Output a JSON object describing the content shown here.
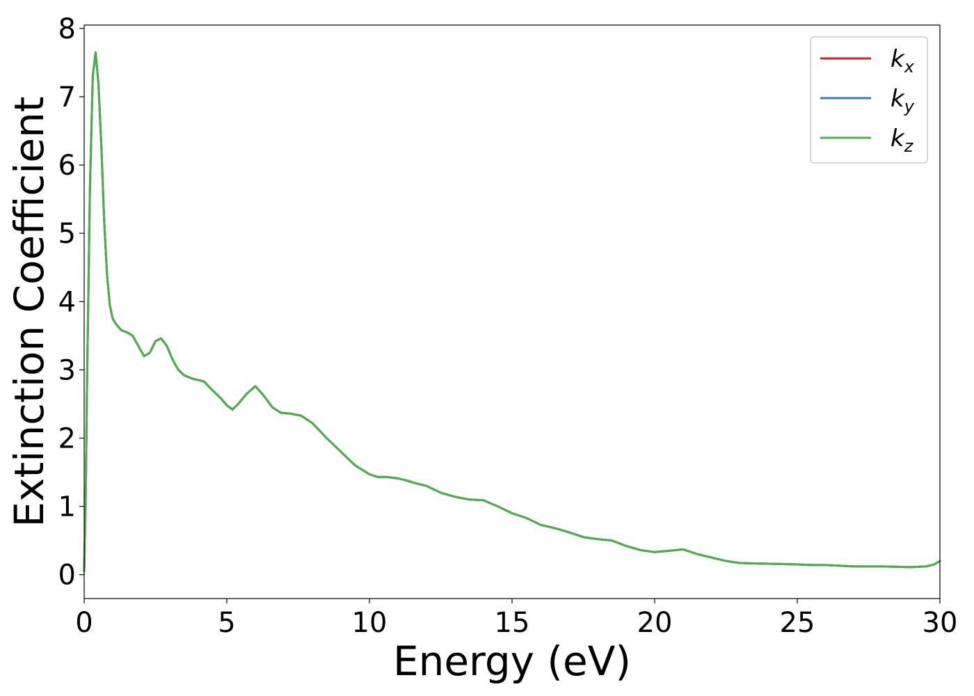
{
  "chart_data": {
    "type": "line",
    "title": "",
    "xlabel": "Energy (eV)",
    "ylabel": "Extinction Coefficient",
    "xlim": [
      0,
      30
    ],
    "ylim": [
      -0.35,
      8.05
    ],
    "xticks": [
      0,
      5,
      10,
      15,
      20,
      25,
      30
    ],
    "yticks": [
      0,
      1,
      2,
      3,
      4,
      5,
      6,
      7,
      8
    ],
    "grid": false,
    "legend_position": "top-right",
    "series": [
      {
        "name": "k",
        "subscript": "x",
        "color": "#e41a1c"
      },
      {
        "name": "k",
        "subscript": "y",
        "color": "#377eb8"
      },
      {
        "name": "k",
        "subscript": "z",
        "color": "#4daf4a"
      }
    ],
    "x": [
      0,
      0.05,
      0.1,
      0.2,
      0.3,
      0.4,
      0.5,
      0.6,
      0.7,
      0.8,
      0.9,
      1.0,
      1.1,
      1.2,
      1.3,
      1.5,
      1.7,
      1.9,
      2.1,
      2.3,
      2.5,
      2.7,
      2.9,
      3.1,
      3.3,
      3.5,
      3.8,
      4.2,
      4.5,
      4.8,
      5.0,
      5.2,
      5.4,
      5.7,
      6.0,
      6.3,
      6.6,
      6.9,
      7.2,
      7.6,
      8.0,
      8.5,
      9.0,
      9.5,
      10.0,
      10.3,
      10.6,
      11.0,
      11.3,
      11.6,
      12.0,
      12.5,
      13.0,
      13.5,
      14.0,
      14.5,
      15.0,
      15.5,
      16.0,
      16.5,
      17.0,
      17.5,
      18.0,
      18.5,
      19.0,
      19.5,
      20.0,
      20.5,
      21.0,
      21.5,
      22.0,
      22.5,
      23.0,
      24.0,
      25.0,
      25.5,
      26.0,
      26.5,
      27.0,
      28.0,
      29.0,
      29.5,
      29.8,
      30.0
    ],
    "y": [
      0.05,
      1.0,
      2.8,
      5.6,
      7.3,
      7.65,
      7.2,
      6.3,
      5.2,
      4.4,
      3.95,
      3.75,
      3.68,
      3.63,
      3.58,
      3.55,
      3.5,
      3.35,
      3.2,
      3.25,
      3.42,
      3.46,
      3.35,
      3.15,
      3.0,
      2.92,
      2.87,
      2.83,
      2.7,
      2.58,
      2.48,
      2.42,
      2.5,
      2.65,
      2.76,
      2.62,
      2.45,
      2.37,
      2.36,
      2.33,
      2.22,
      2.0,
      1.8,
      1.6,
      1.47,
      1.43,
      1.43,
      1.41,
      1.38,
      1.34,
      1.3,
      1.2,
      1.14,
      1.1,
      1.09,
      1.0,
      0.9,
      0.83,
      0.73,
      0.68,
      0.62,
      0.55,
      0.52,
      0.5,
      0.42,
      0.36,
      0.33,
      0.35,
      0.37,
      0.3,
      0.25,
      0.2,
      0.17,
      0.16,
      0.15,
      0.14,
      0.14,
      0.13,
      0.12,
      0.12,
      0.11,
      0.12,
      0.15,
      0.2
    ]
  }
}
